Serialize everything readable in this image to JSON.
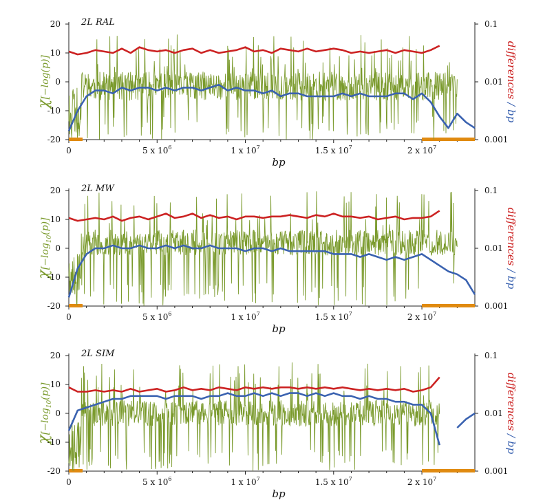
{
  "chart_data": [
    {
      "type": "line",
      "title": "2L RAL",
      "xlabel": "bp",
      "xlim": [
        0,
        23000000
      ],
      "ylim": [
        -20,
        20
      ],
      "left_ticks": [
        "20",
        "10",
        "0",
        "-10",
        "-20"
      ],
      "right_ticks": [
        "0.1",
        "0.01",
        "0.001"
      ],
      "x_ticks": [
        {
          "value": 0,
          "base": "0",
          "exp": ""
        },
        {
          "value": 5000000,
          "base": "5 x 10",
          "exp": "6"
        },
        {
          "value": 10000000,
          "base": "1 x 10",
          "exp": "7"
        },
        {
          "value": 15000000,
          "base": "1.5 x 10",
          "exp": "7"
        },
        {
          "value": 20000000,
          "base": "2 x 10",
          "exp": "7"
        }
      ],
      "left_axis_label": {
        "pre": "χ",
        "sub": "",
        "mid": "[−log",
        "sub2": "",
        "post": "(p)]"
      },
      "right_axis_label": {
        "part1": "differences",
        "sep": " / ",
        "part2": "bp"
      },
      "series": [
        {
          "role": "chi",
          "color": "#7a9a2c",
          "baseline": -1.5,
          "amplitude": 10,
          "seed": 11,
          "end": 22000000
        },
        {
          "role": "differences",
          "color": "#cc2222",
          "x": [
            0,
            500000,
            1000000,
            1500000,
            2000000,
            2500000,
            3000000,
            3500000,
            4000000,
            4500000,
            5000000,
            5500000,
            6000000,
            6500000,
            7000000,
            7500000,
            8000000,
            8500000,
            9000000,
            9500000,
            10000000,
            10500000,
            11000000,
            11500000,
            12000000,
            12500000,
            13000000,
            13500000,
            14000000,
            14500000,
            15000000,
            15500000,
            16000000,
            16500000,
            17000000,
            17500000,
            18000000,
            18500000,
            19000000,
            19500000,
            20000000,
            20500000,
            21000000,
            21500000,
            22000000
          ],
          "y": [
            10.5,
            9.5,
            10.0,
            11.0,
            10.5,
            10.0,
            11.5,
            10.0,
            12.0,
            11.0,
            10.5,
            11.0,
            10.0,
            11.0,
            11.5,
            10.0,
            11.0,
            10.0,
            10.5,
            11.0,
            12.0,
            10.5,
            11.0,
            10.0,
            11.5,
            11.0,
            10.5,
            11.5,
            10.5,
            11.0,
            11.5,
            11.0,
            10.0,
            10.5,
            10.0,
            10.5,
            11.0,
            10.0,
            11.0,
            10.5,
            10.0,
            11.0,
            12.5,
            null,
            12.5
          ]
        },
        {
          "role": "differences",
          "color": "#3a62b0",
          "x": [
            0,
            500000,
            1000000,
            1500000,
            2000000,
            2500000,
            3000000,
            3500000,
            4000000,
            4500000,
            5000000,
            5500000,
            6000000,
            6500000,
            7000000,
            7500000,
            8000000,
            8500000,
            9000000,
            9500000,
            10000000,
            10500000,
            11000000,
            11500000,
            12000000,
            12500000,
            13000000,
            13500000,
            14000000,
            14500000,
            15000000,
            15500000,
            16000000,
            16500000,
            17000000,
            17500000,
            18000000,
            18500000,
            19000000,
            19500000,
            20000000,
            20500000,
            21000000,
            21500000,
            22000000,
            22500000,
            23000000
          ],
          "y": [
            -17,
            -10,
            -5,
            -3,
            -3,
            -4,
            -2,
            -3,
            -2,
            -2,
            -3,
            -2,
            -3,
            -2,
            -2,
            -3,
            -2,
            -1,
            -3,
            -2,
            -3,
            -3,
            -4,
            -3,
            -5,
            -4,
            -4,
            -5,
            -5,
            -5,
            -5,
            -4,
            -5,
            -4,
            -5,
            -5,
            -5,
            -4,
            -4,
            -6,
            -4,
            -7,
            -12,
            -16,
            -11,
            -14,
            -16
          ]
        }
      ]
    },
    {
      "type": "line",
      "title": "2L MW",
      "xlabel": "bp",
      "xlim": [
        0,
        23000000
      ],
      "ylim": [
        -20,
        20
      ],
      "left_ticks": [
        "20",
        "10",
        "0",
        "-10",
        "-20"
      ],
      "right_ticks": [
        "0.1",
        "0.01",
        "0.001"
      ],
      "x_ticks": [
        {
          "value": 0,
          "base": "0",
          "exp": ""
        },
        {
          "value": 5000000,
          "base": "5 x 10",
          "exp": "6"
        },
        {
          "value": 10000000,
          "base": "1 x 10",
          "exp": "7"
        },
        {
          "value": 15000000,
          "base": "1.5 x 10",
          "exp": "7"
        },
        {
          "value": 20000000,
          "base": "2 x 10",
          "exp": "7"
        }
      ],
      "left_axis_label": {
        "pre": "χ",
        "sub": "",
        "mid": "[−log",
        "sub2": "10",
        "post": "(p)]"
      },
      "right_axis_label": {
        "part1": "differences",
        "sep": " / ",
        "part2": "bp"
      },
      "series": [
        {
          "role": "chi",
          "color": "#7a9a2c",
          "baseline": 2,
          "amplitude": 9,
          "seed": 23,
          "end": 22000000
        },
        {
          "role": "differences",
          "color": "#cc2222",
          "x": [
            0,
            500000,
            1000000,
            1500000,
            2000000,
            2500000,
            3000000,
            3500000,
            4000000,
            4500000,
            5000000,
            5500000,
            6000000,
            6500000,
            7000000,
            7500000,
            8000000,
            8500000,
            9000000,
            9500000,
            10000000,
            10500000,
            11000000,
            11500000,
            12000000,
            12500000,
            13000000,
            13500000,
            14000000,
            14500000,
            15000000,
            15500000,
            16000000,
            16500000,
            17000000,
            17500000,
            18000000,
            18500000,
            19000000,
            19500000,
            20000000,
            20500000,
            21000000,
            21500000,
            22000000
          ],
          "y": [
            10.5,
            9.5,
            10.0,
            10.5,
            10.0,
            11.0,
            9.5,
            10.5,
            11.0,
            10.0,
            11.0,
            12.0,
            10.5,
            11.0,
            12.0,
            10.5,
            11.5,
            10.5,
            11.0,
            10.0,
            11.0,
            11.0,
            10.5,
            11.0,
            11.0,
            11.5,
            11.0,
            10.5,
            11.5,
            11.0,
            12.0,
            11.0,
            11.0,
            10.5,
            11.0,
            10.0,
            10.5,
            11.0,
            10.0,
            10.5,
            10.5,
            11.0,
            13.0,
            null,
            13.0
          ]
        },
        {
          "role": "differences",
          "color": "#3a62b0",
          "x": [
            0,
            500000,
            1000000,
            1500000,
            2000000,
            2500000,
            3000000,
            3500000,
            4000000,
            4500000,
            5000000,
            5500000,
            6000000,
            6500000,
            7000000,
            7500000,
            8000000,
            8500000,
            9000000,
            9500000,
            10000000,
            10500000,
            11000000,
            11500000,
            12000000,
            12500000,
            13000000,
            13500000,
            14000000,
            14500000,
            15000000,
            15500000,
            16000000,
            16500000,
            17000000,
            17500000,
            18000000,
            18500000,
            19000000,
            19500000,
            20000000,
            20500000,
            21000000,
            21500000,
            22000000,
            22500000,
            23000000
          ],
          "y": [
            -17,
            -7,
            -2,
            0,
            0,
            1,
            0,
            0,
            1,
            0,
            0,
            1,
            0,
            1,
            0,
            0,
            1,
            0,
            0,
            0,
            -1,
            0,
            0,
            -1,
            0,
            -1,
            -1,
            -1,
            -1,
            -1,
            -2,
            -2,
            -2,
            -3,
            -2,
            -3,
            -4,
            -3,
            -4,
            -3,
            -2,
            -4,
            -6,
            -8,
            -9,
            -11,
            -16
          ]
        }
      ]
    },
    {
      "type": "line",
      "title": "2L SIM",
      "xlabel": "bp",
      "xlim": [
        0,
        23000000
      ],
      "ylim": [
        -20,
        20
      ],
      "left_ticks": [
        "20",
        "10",
        "0",
        "-10",
        "-20"
      ],
      "right_ticks": [
        "0.1",
        "0.01",
        "0.001"
      ],
      "x_ticks": [
        {
          "value": 0,
          "base": "0",
          "exp": ""
        },
        {
          "value": 5000000,
          "base": "5 x 10",
          "exp": "6"
        },
        {
          "value": 10000000,
          "base": "1 x 10",
          "exp": "7"
        },
        {
          "value": 15000000,
          "base": "1.5 x 10",
          "exp": "7"
        },
        {
          "value": 20000000,
          "base": "2 x 10",
          "exp": "7"
        }
      ],
      "left_axis_label": {
        "pre": "χ",
        "sub": "",
        "mid": "[−log",
        "sub2": "10",
        "post": "(p)]"
      },
      "right_axis_label": {
        "part1": "differences",
        "sep": " / ",
        "part2": "bp"
      },
      "series": [
        {
          "role": "chi",
          "color": "#7a9a2c",
          "baseline": 0,
          "amplitude": 9,
          "seed": 37,
          "end": 21000000
        },
        {
          "role": "differences",
          "color": "#cc2222",
          "x": [
            0,
            500000,
            1000000,
            1500000,
            2000000,
            2500000,
            3000000,
            3500000,
            4000000,
            4500000,
            5000000,
            5500000,
            6000000,
            6500000,
            7000000,
            7500000,
            8000000,
            8500000,
            9000000,
            9500000,
            10000000,
            10500000,
            11000000,
            11500000,
            12000000,
            12500000,
            13000000,
            13500000,
            14000000,
            14500000,
            15000000,
            15500000,
            16000000,
            16500000,
            17000000,
            17500000,
            18000000,
            18500000,
            19000000,
            19500000,
            20000000,
            20500000,
            21000000
          ],
          "y": [
            9,
            7.5,
            7.5,
            8,
            7.5,
            8,
            7.5,
            8.5,
            7.5,
            8,
            8.5,
            7.5,
            8,
            9,
            8,
            8.5,
            8,
            9,
            8.5,
            8,
            9,
            8.5,
            9,
            8.5,
            9,
            9,
            8.5,
            9,
            8.5,
            9,
            8.5,
            9,
            8.5,
            8,
            8.5,
            8,
            8.5,
            8,
            8.5,
            7.5,
            8,
            9,
            12.5
          ]
        },
        {
          "role": "differences",
          "color": "#3a62b0",
          "x": [
            0,
            500000,
            1000000,
            1500000,
            2000000,
            2500000,
            3000000,
            3500000,
            4000000,
            4500000,
            5000000,
            5500000,
            6000000,
            6500000,
            7000000,
            7500000,
            8000000,
            8500000,
            9000000,
            9500000,
            10000000,
            10500000,
            11000000,
            11500000,
            12000000,
            12500000,
            13000000,
            13500000,
            14000000,
            14500000,
            15000000,
            15500000,
            16000000,
            16500000,
            17000000,
            17500000,
            18000000,
            18500000,
            19000000,
            19500000,
            20000000,
            20500000,
            21000000,
            21500000,
            22000000,
            22500000,
            23000000
          ],
          "y": [
            -6,
            1,
            2,
            3,
            4,
            5,
            5,
            6,
            6,
            6,
            6,
            5,
            6,
            6,
            6,
            5,
            6,
            6,
            7,
            6,
            6,
            7,
            6,
            7,
            6,
            7,
            7,
            6,
            7,
            6,
            7,
            6,
            6,
            5,
            6,
            5,
            5,
            4,
            4,
            3,
            3,
            0,
            -11,
            null,
            -5,
            -2,
            0
          ]
        }
      ]
    }
  ]
}
